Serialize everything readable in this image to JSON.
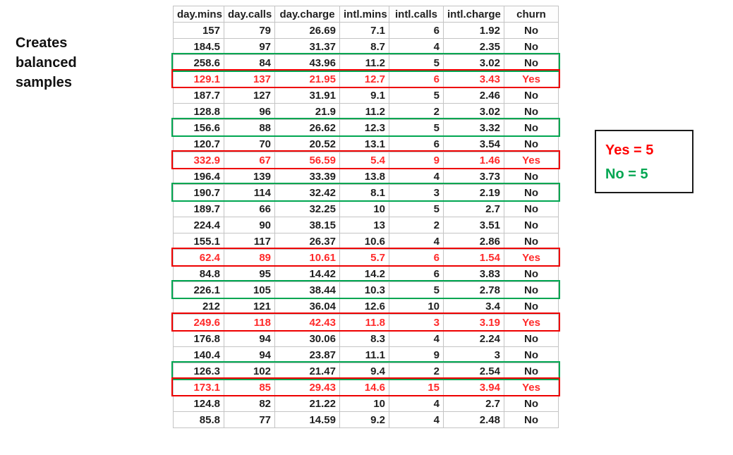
{
  "caption": "Creates balanced samples",
  "legend": {
    "yes_label": "Yes = 5",
    "no_label": "No = 5"
  },
  "colors": {
    "red_border": "#ee0000",
    "red_text": "#ff2a2a",
    "green": "#00a651",
    "gridline": "#c4c4c4",
    "legend_red": "#ff0000",
    "legend_border": "#1a1a1a"
  },
  "table": {
    "columns": [
      "day.mins",
      "day.calls",
      "day.charge",
      "intl.mins",
      "intl.calls",
      "intl.charge",
      "churn"
    ],
    "rows": [
      {
        "cells": [
          "157",
          "79",
          "26.69",
          "7.1",
          "6",
          "1.92",
          "No"
        ],
        "highlight": null
      },
      {
        "cells": [
          "184.5",
          "97",
          "31.37",
          "8.7",
          "4",
          "2.35",
          "No"
        ],
        "highlight": null
      },
      {
        "cells": [
          "258.6",
          "84",
          "43.96",
          "11.2",
          "5",
          "3.02",
          "No"
        ],
        "highlight": "green"
      },
      {
        "cells": [
          "129.1",
          "137",
          "21.95",
          "12.7",
          "6",
          "3.43",
          "Yes"
        ],
        "highlight": "red"
      },
      {
        "cells": [
          "187.7",
          "127",
          "31.91",
          "9.1",
          "5",
          "2.46",
          "No"
        ],
        "highlight": null
      },
      {
        "cells": [
          "128.8",
          "96",
          "21.9",
          "11.2",
          "2",
          "3.02",
          "No"
        ],
        "highlight": null
      },
      {
        "cells": [
          "156.6",
          "88",
          "26.62",
          "12.3",
          "5",
          "3.32",
          "No"
        ],
        "highlight": "green"
      },
      {
        "cells": [
          "120.7",
          "70",
          "20.52",
          "13.1",
          "6",
          "3.54",
          "No"
        ],
        "highlight": null
      },
      {
        "cells": [
          "332.9",
          "67",
          "56.59",
          "5.4",
          "9",
          "1.46",
          "Yes"
        ],
        "highlight": "red"
      },
      {
        "cells": [
          "196.4",
          "139",
          "33.39",
          "13.8",
          "4",
          "3.73",
          "No"
        ],
        "highlight": null
      },
      {
        "cells": [
          "190.7",
          "114",
          "32.42",
          "8.1",
          "3",
          "2.19",
          "No"
        ],
        "highlight": "green"
      },
      {
        "cells": [
          "189.7",
          "66",
          "32.25",
          "10",
          "5",
          "2.7",
          "No"
        ],
        "highlight": null
      },
      {
        "cells": [
          "224.4",
          "90",
          "38.15",
          "13",
          "2",
          "3.51",
          "No"
        ],
        "highlight": null
      },
      {
        "cells": [
          "155.1",
          "117",
          "26.37",
          "10.6",
          "4",
          "2.86",
          "No"
        ],
        "highlight": null
      },
      {
        "cells": [
          "62.4",
          "89",
          "10.61",
          "5.7",
          "6",
          "1.54",
          "Yes"
        ],
        "highlight": "red"
      },
      {
        "cells": [
          "84.8",
          "95",
          "14.42",
          "14.2",
          "6",
          "3.83",
          "No"
        ],
        "highlight": null
      },
      {
        "cells": [
          "226.1",
          "105",
          "38.44",
          "10.3",
          "5",
          "2.78",
          "No"
        ],
        "highlight": "green"
      },
      {
        "cells": [
          "212",
          "121",
          "36.04",
          "12.6",
          "10",
          "3.4",
          "No"
        ],
        "highlight": null
      },
      {
        "cells": [
          "249.6",
          "118",
          "42.43",
          "11.8",
          "3",
          "3.19",
          "Yes"
        ],
        "highlight": "red"
      },
      {
        "cells": [
          "176.8",
          "94",
          "30.06",
          "8.3",
          "4",
          "2.24",
          "No"
        ],
        "highlight": null
      },
      {
        "cells": [
          "140.4",
          "94",
          "23.87",
          "11.1",
          "9",
          "3",
          "No"
        ],
        "highlight": null
      },
      {
        "cells": [
          "126.3",
          "102",
          "21.47",
          "9.4",
          "2",
          "2.54",
          "No"
        ],
        "highlight": "green"
      },
      {
        "cells": [
          "173.1",
          "85",
          "29.43",
          "14.6",
          "15",
          "3.94",
          "Yes"
        ],
        "highlight": "red"
      },
      {
        "cells": [
          "124.8",
          "82",
          "21.22",
          "10",
          "4",
          "2.7",
          "No"
        ],
        "highlight": null
      },
      {
        "cells": [
          "85.8",
          "77",
          "14.59",
          "9.2",
          "4",
          "2.48",
          "No"
        ],
        "highlight": null
      }
    ]
  }
}
